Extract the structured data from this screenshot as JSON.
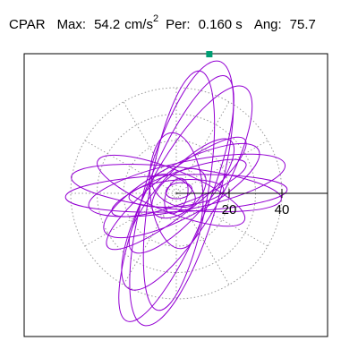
{
  "header": {
    "component": "CPAR",
    "max_label": "Max:",
    "max_value": "54.2",
    "max_unit": "cm/s",
    "max_unit_exp": "2",
    "per_label": "Per:",
    "per_value": "0.160 s",
    "ang_label": "Ang:",
    "ang_value": "75.7"
  },
  "chart_data": {
    "type": "polar-orbit",
    "title": "CPAR  Max: 54.2 cm/s2  Per: 0.160 s  Ang: 75.7",
    "radial_ticks": [
      20,
      40
    ],
    "rings": [
      10,
      20,
      30,
      40
    ],
    "spokes_deg": [
      0,
      30,
      60,
      90,
      120,
      150,
      180,
      210,
      240,
      270,
      300,
      330
    ],
    "grid": "dotted gray",
    "trace_color": "#9400d3",
    "max_point": {
      "x": 12.5,
      "y": 52.7,
      "color": "#009e73"
    },
    "ellipses": [
      {
        "cx": 2,
        "cy": 0,
        "a": 52,
        "b": 14,
        "angle_deg": 74
      },
      {
        "cx": 0,
        "cy": -2,
        "a": 50,
        "b": 12,
        "angle_deg": 68
      },
      {
        "cx": 1,
        "cy": 1,
        "a": 46,
        "b": 11,
        "angle_deg": 80
      },
      {
        "cx": 4,
        "cy": 2,
        "a": 44,
        "b": 13,
        "angle_deg": 60
      },
      {
        "cx": 0,
        "cy": 0,
        "a": 42,
        "b": 7,
        "angle_deg": 2
      },
      {
        "cx": 0,
        "cy": 2,
        "a": 40,
        "b": 8,
        "angle_deg": -6
      },
      {
        "cx": 4,
        "cy": 3,
        "a": 38,
        "b": 9,
        "angle_deg": 12
      },
      {
        "cx": 2,
        "cy": 1,
        "a": 33,
        "b": 10,
        "angle_deg": 28
      },
      {
        "cx": 0,
        "cy": 0,
        "a": 33,
        "b": 8,
        "angle_deg": 38
      },
      {
        "cx": -2,
        "cy": 1,
        "a": 30,
        "b": 8,
        "angle_deg": -22
      },
      {
        "cx": 2,
        "cy": -1,
        "a": 28,
        "b": 9,
        "angle_deg": 48
      },
      {
        "cx": 1,
        "cy": 2,
        "a": 27,
        "b": 6,
        "angle_deg": 20
      },
      {
        "cx": 0,
        "cy": 1,
        "a": 22,
        "b": 10,
        "angle_deg": 95
      },
      {
        "cx": 0,
        "cy": 0,
        "a": 18,
        "b": 5,
        "angle_deg": 5
      },
      {
        "cx": 1,
        "cy": 0,
        "a": 12,
        "b": 7,
        "angle_deg": 40
      },
      {
        "cx": -1,
        "cy": 1,
        "a": 9,
        "b": 5,
        "angle_deg": -30
      },
      {
        "cx": 0,
        "cy": -1,
        "a": 7,
        "b": 4,
        "angle_deg": 70
      },
      {
        "cx": 1,
        "cy": 1,
        "a": 5,
        "b": 3,
        "angle_deg": 10
      }
    ]
  }
}
